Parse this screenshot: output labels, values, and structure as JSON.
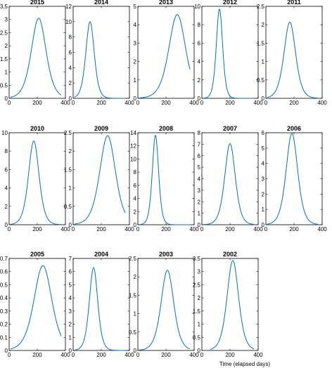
{
  "figure": {
    "xlabel": "Time (elapsed days)",
    "line_color": "#0072BD"
  },
  "chart_data": [
    {
      "type": "line",
      "title": "2015",
      "xlim": [
        0,
        400
      ],
      "ylim": [
        0,
        3.5
      ],
      "xticks": [
        0,
        200,
        400
      ],
      "yticks": [
        0,
        0.5,
        1,
        1.5,
        2,
        2.5,
        3,
        3.5
      ],
      "peak_x": 210,
      "peak_y": 3.05,
      "width": 70,
      "x_range": [
        10,
        370
      ]
    },
    {
      "type": "line",
      "title": "2014",
      "xlim": [
        0,
        400
      ],
      "ylim": [
        0,
        12
      ],
      "xticks": [
        0,
        200,
        400
      ],
      "yticks": [
        0,
        2,
        4,
        6,
        8,
        10,
        12
      ],
      "peak_x": 120,
      "peak_y": 10,
      "width": 40,
      "x_range": [
        10,
        370
      ]
    },
    {
      "type": "line",
      "title": "2013",
      "xlim": [
        0,
        400
      ],
      "ylim": [
        0,
        5
      ],
      "xticks": [
        0,
        200,
        400
      ],
      "yticks": [
        0,
        1,
        2,
        3,
        4,
        5
      ],
      "peak_x": 280,
      "peak_y": 4.55,
      "width": 80,
      "x_range": [
        10,
        370
      ]
    },
    {
      "type": "line",
      "title": "2012",
      "xlim": [
        0,
        400
      ],
      "ylim": [
        0,
        10
      ],
      "xticks": [
        0,
        200,
        400
      ],
      "yticks": [
        0,
        2,
        4,
        6,
        8,
        10
      ],
      "peak_x": 125,
      "peak_y": 9.7,
      "width": 30,
      "x_range": [
        10,
        370
      ]
    },
    {
      "type": "line",
      "title": "2011",
      "xlim": [
        0,
        400
      ],
      "ylim": [
        0,
        2.5
      ],
      "xticks": [
        0,
        200,
        400
      ],
      "yticks": [
        0,
        0.5,
        1,
        1.5,
        2,
        2.5
      ],
      "peak_x": 170,
      "peak_y": 2.07,
      "width": 55,
      "x_range": [
        10,
        370
      ]
    },
    {
      "type": "line",
      "title": "2010",
      "xlim": [
        0,
        400
      ],
      "ylim": [
        0,
        10
      ],
      "xticks": [
        0,
        200,
        400
      ],
      "yticks": [
        0,
        2,
        4,
        6,
        8,
        10
      ],
      "peak_x": 175,
      "peak_y": 9.1,
      "width": 50,
      "x_range": [
        10,
        370
      ]
    },
    {
      "type": "line",
      "title": "2009",
      "xlim": [
        0,
        400
      ],
      "ylim": [
        0,
        2.5
      ],
      "xticks": [
        0,
        200,
        400
      ],
      "yticks": [
        0,
        0.5,
        1,
        1.5,
        2,
        2.5
      ],
      "peak_x": 245,
      "peak_y": 2.42,
      "width": 75,
      "x_range": [
        10,
        370
      ]
    },
    {
      "type": "line",
      "title": "2008",
      "xlim": [
        0,
        400
      ],
      "ylim": [
        0,
        14
      ],
      "xticks": [
        0,
        200,
        400
      ],
      "yticks": [
        0,
        2,
        4,
        6,
        8,
        10,
        12,
        14
      ],
      "peak_x": 125,
      "peak_y": 13.6,
      "width": 30,
      "x_range": [
        10,
        370
      ]
    },
    {
      "type": "line",
      "title": "2007",
      "xlim": [
        0,
        400
      ],
      "ylim": [
        0,
        8
      ],
      "xticks": [
        0,
        200,
        400
      ],
      "yticks": [
        0,
        1,
        2,
        3,
        4,
        5,
        6,
        7,
        8
      ],
      "peak_x": 200,
      "peak_y": 7.05,
      "width": 50,
      "x_range": [
        10,
        370
      ]
    },
    {
      "type": "line",
      "title": "2006",
      "xlim": [
        0,
        400
      ],
      "ylim": [
        0,
        6
      ],
      "xticks": [
        0,
        200,
        400
      ],
      "yticks": [
        0,
        1,
        2,
        3,
        4,
        5,
        6
      ],
      "peak_x": 185,
      "peak_y": 5.95,
      "width": 55,
      "x_range": [
        10,
        370
      ]
    },
    {
      "type": "line",
      "title": "2005",
      "xlim": [
        0,
        400
      ],
      "ylim": [
        0,
        0.7
      ],
      "xticks": [
        0,
        200,
        400
      ],
      "yticks": [
        0,
        0.1,
        0.2,
        0.3,
        0.4,
        0.5,
        0.6,
        0.7
      ],
      "peak_x": 240,
      "peak_y": 0.645,
      "width": 85,
      "x_range": [
        10,
        370
      ]
    },
    {
      "type": "line",
      "title": "2004",
      "xlim": [
        0,
        400
      ],
      "ylim": [
        0,
        7
      ],
      "xticks": [
        0,
        200,
        400
      ],
      "yticks": [
        0,
        1,
        2,
        3,
        4,
        5,
        6,
        7
      ],
      "peak_x": 145,
      "peak_y": 6.3,
      "width": 40,
      "x_range": [
        10,
        370
      ]
    },
    {
      "type": "line",
      "title": "2003",
      "xlim": [
        0,
        400
      ],
      "ylim": [
        0,
        2.5
      ],
      "xticks": [
        0,
        200,
        400
      ],
      "yticks": [
        0,
        0.5,
        1,
        1.5,
        2,
        2.5
      ],
      "peak_x": 210,
      "peak_y": 2.18,
      "width": 60,
      "x_range": [
        10,
        370
      ]
    },
    {
      "type": "line",
      "title": "2002",
      "xlim": [
        0,
        400
      ],
      "ylim": [
        0,
        3.5
      ],
      "xticks": [
        0,
        200,
        400
      ],
      "yticks": [
        0,
        0.5,
        1,
        1.5,
        2,
        2.5,
        3,
        3.5
      ],
      "peak_x": 220,
      "peak_y": 3.42,
      "width": 55,
      "x_range": [
        60,
        370
      ]
    }
  ]
}
